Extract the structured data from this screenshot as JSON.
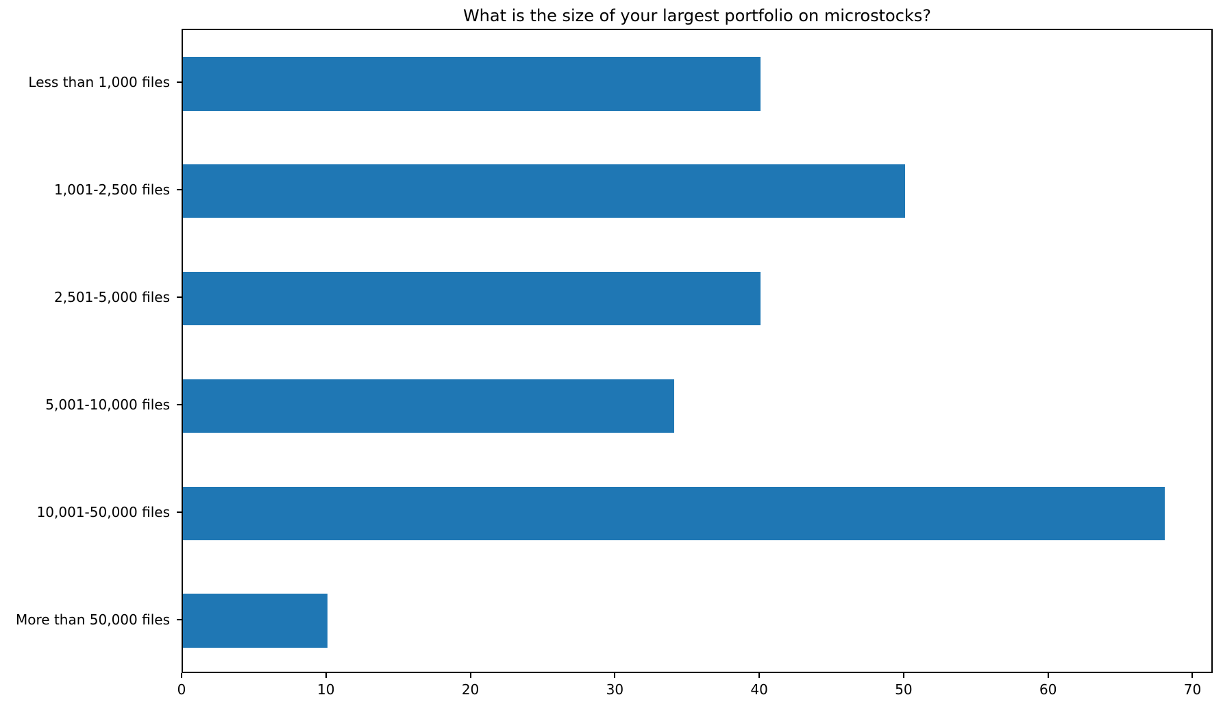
{
  "chart_data": {
    "type": "bar",
    "orientation": "horizontal",
    "title": "What is the size of your largest portfolio on microstocks?",
    "categories": [
      "Less than 1,000 files",
      "1,001-2,500 files",
      "2,501-5,000 files",
      "5,001-10,000 files",
      "10,001-50,000 files",
      "More than 50,000 files"
    ],
    "values": [
      40,
      50,
      40,
      34,
      68,
      10
    ],
    "xlabel": "",
    "ylabel": "",
    "xticks": [
      0,
      10,
      20,
      30,
      40,
      50,
      60,
      70
    ],
    "xlim": [
      0,
      71.4
    ],
    "bar_color": "#1f77b4",
    "axis_color": "#000000",
    "grid": false,
    "legend": null
  }
}
